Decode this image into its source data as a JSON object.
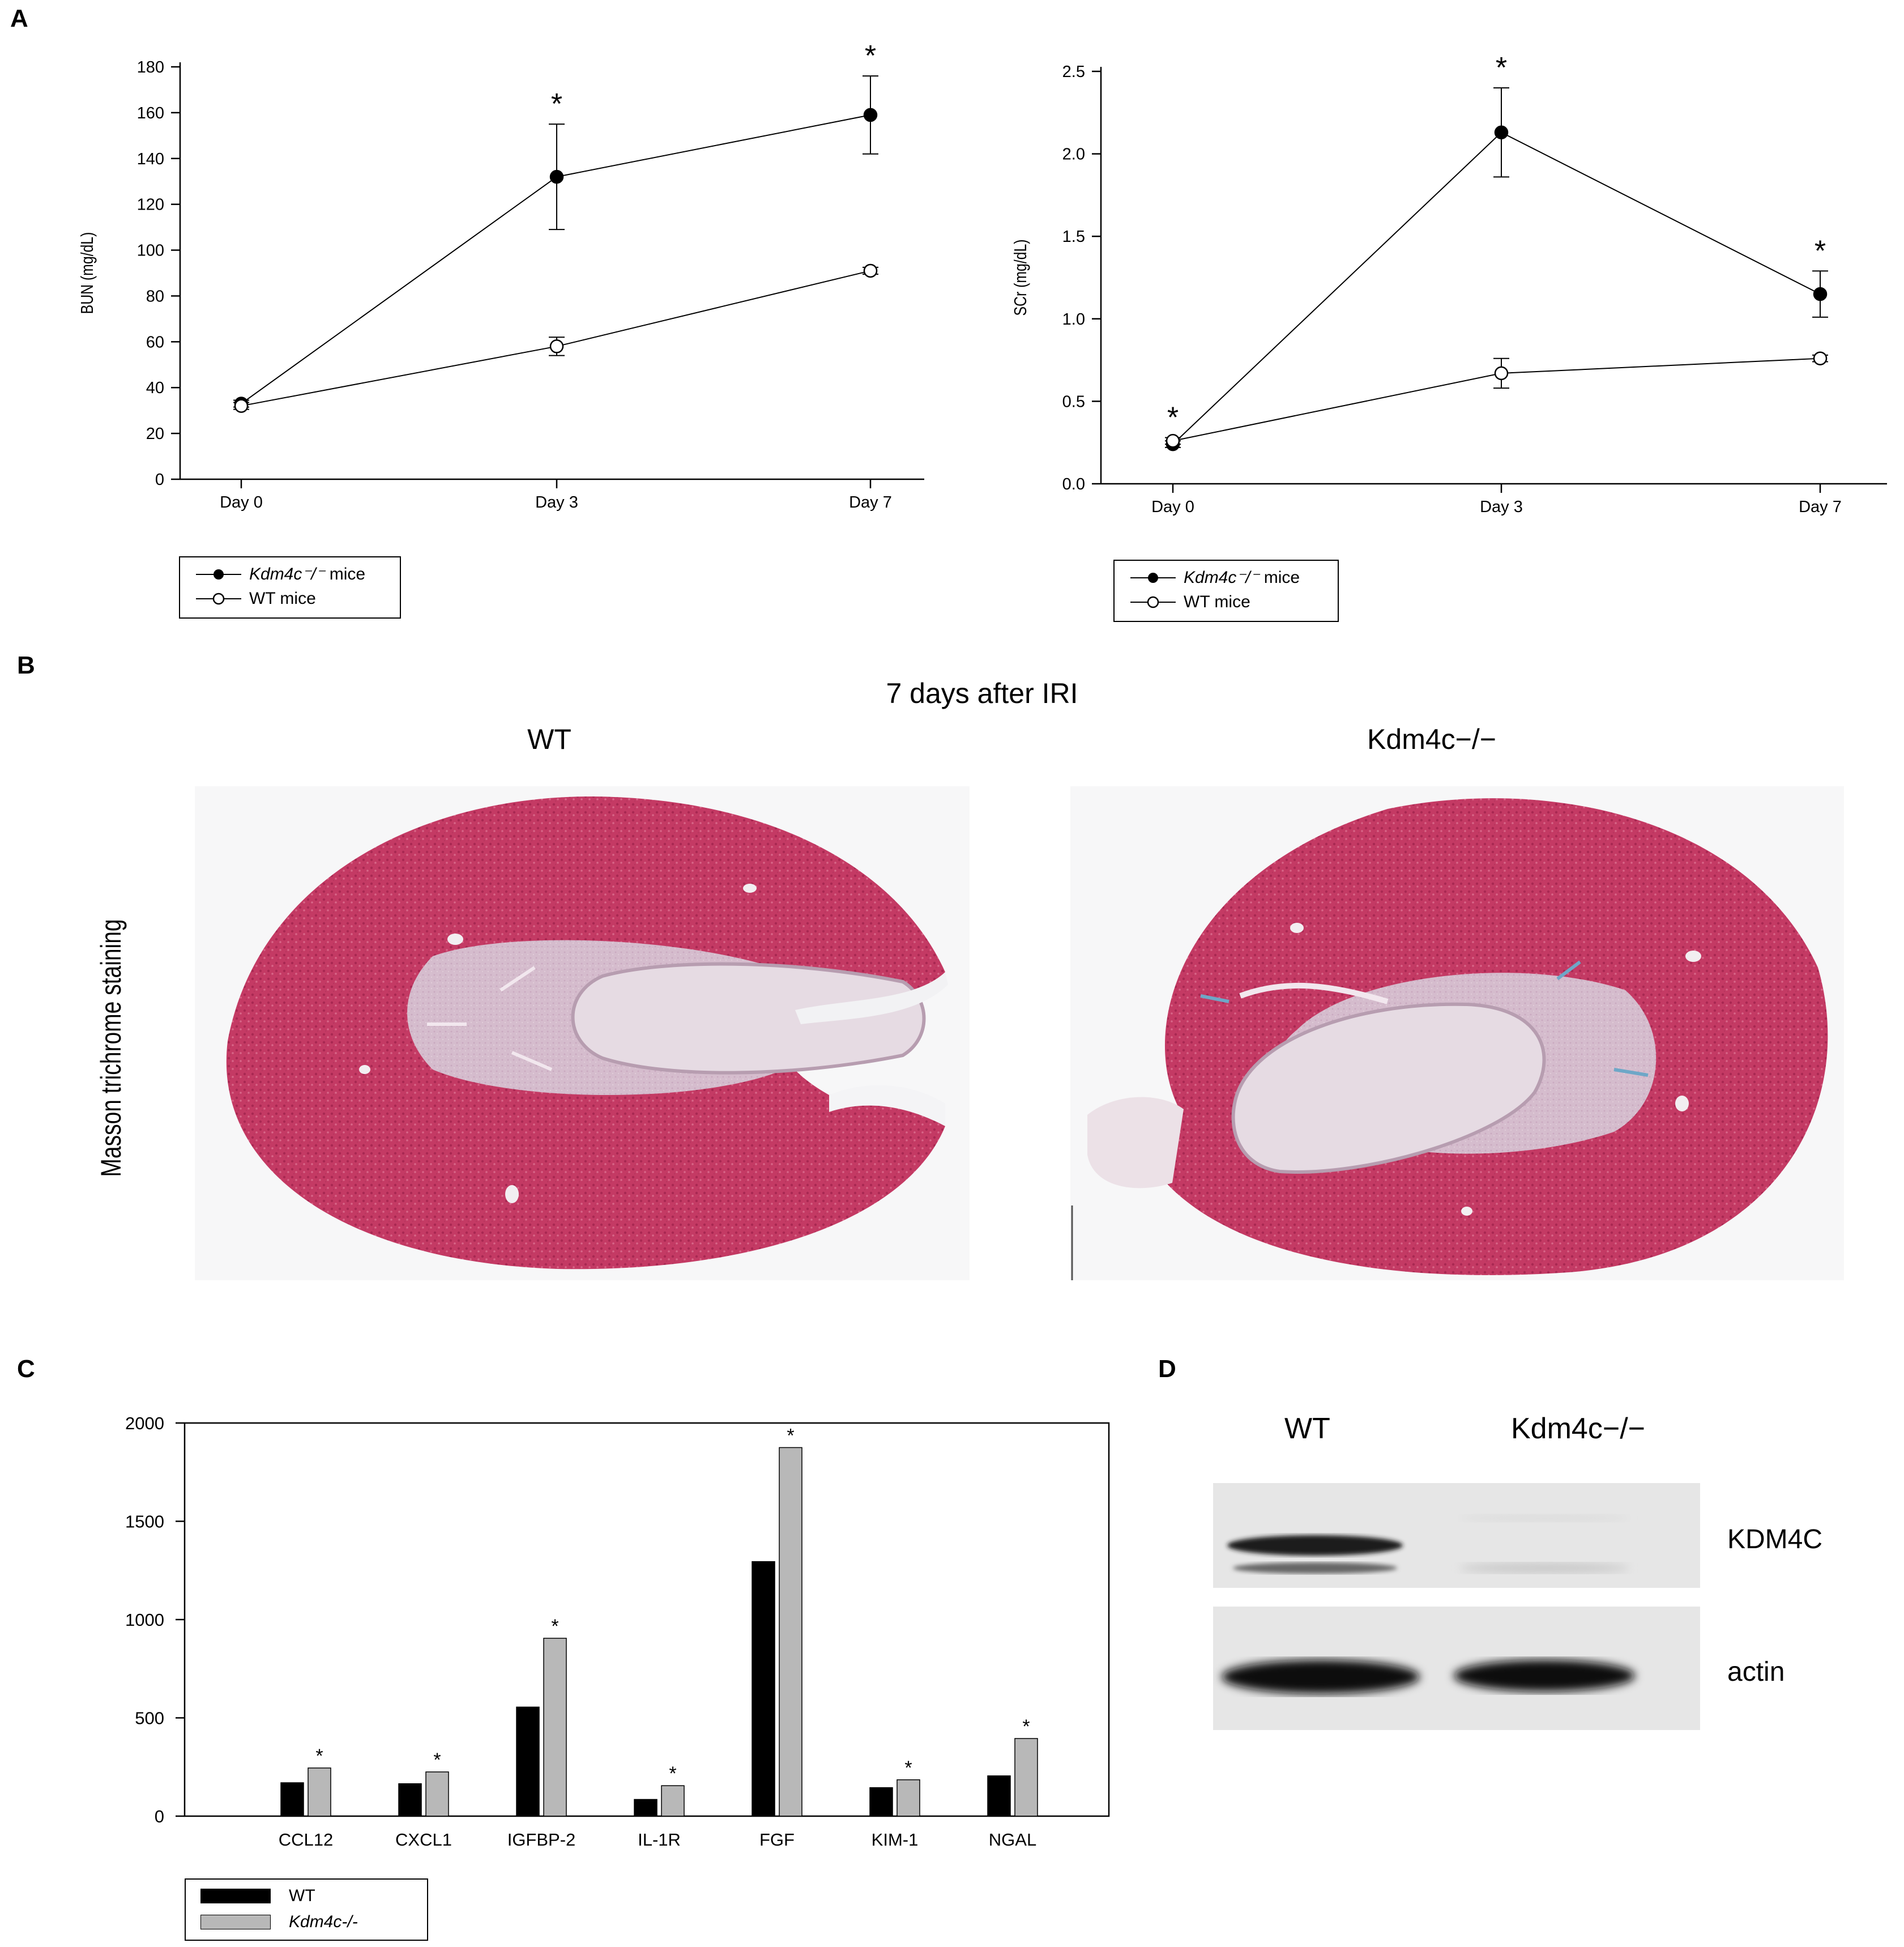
{
  "panels": {
    "a": "A",
    "b": "B",
    "c": "C",
    "d": "D"
  },
  "chart_data": [
    {
      "id": "bun",
      "type": "line",
      "ylabel": "BUN (mg/dL)",
      "categories": [
        "Day 0",
        "Day 3",
        "Day 7"
      ],
      "ylim": [
        0,
        180
      ],
      "yticks": [
        0,
        20,
        40,
        60,
        80,
        100,
        120,
        140,
        160,
        180
      ],
      "series": [
        {
          "name": "Kdm4c⁻/⁻ mice",
          "marker": "filled",
          "values": [
            33,
            132,
            159
          ],
          "errors": [
            1.5,
            23,
            17
          ]
        },
        {
          "name": "WT mice",
          "marker": "open",
          "values": [
            32,
            58,
            91
          ],
          "errors": [
            1.5,
            4,
            1.5
          ]
        }
      ],
      "significance": [
        "",
        "*",
        "*"
      ],
      "legend": {
        "name_italic": "Kdm4c⁻/⁻",
        "name_rest": " mice",
        "wt": "WT mice"
      }
    },
    {
      "id": "scr",
      "type": "line",
      "ylabel": "SCr (mg/dL)",
      "categories": [
        "Day 0",
        "Day 3",
        "Day 7"
      ],
      "ylim": [
        0,
        2.5
      ],
      "yticks": [
        "0.0",
        "0.5",
        "1.0",
        "1.5",
        "2.0",
        "2.5"
      ],
      "series": [
        {
          "name": "Kdm4c⁻/⁻ mice",
          "marker": "filled",
          "values": [
            0.24,
            2.13,
            1.15
          ],
          "errors": [
            0.02,
            0.27,
            0.14
          ]
        },
        {
          "name": "WT mice",
          "marker": "open",
          "values": [
            0.26,
            0.67,
            0.76
          ],
          "errors": [
            0.02,
            0.09,
            0.02
          ]
        }
      ],
      "significance": [
        "*",
        "*",
        "*"
      ],
      "legend": {
        "name_italic": "Kdm4c⁻/⁻",
        "name_rest": " mice",
        "wt": "WT mice"
      }
    },
    {
      "id": "cytokines",
      "type": "bar",
      "categories": [
        "CCL12",
        "CXCL1",
        "IGFBP-2",
        "IL-1R",
        "FGF",
        "KIM-1",
        "NGAL"
      ],
      "ylim": [
        0,
        2000
      ],
      "yticks": [
        0,
        500,
        1000,
        1500,
        2000
      ],
      "series": [
        {
          "name": "WT",
          "color": "#000000",
          "values": [
            170,
            165,
            555,
            85,
            1295,
            145,
            205
          ]
        },
        {
          "name": "Kdm4c-/-",
          "color": "#b8b8b8",
          "values": [
            245,
            225,
            905,
            155,
            1875,
            185,
            395
          ]
        }
      ],
      "significance": [
        "*",
        "*",
        "*",
        "*",
        "*",
        "*",
        "*"
      ]
    }
  ],
  "histology": {
    "title": "7 days after IRI",
    "left_label": "WT",
    "right_label": "Kdm4c−/−",
    "row_label": "Masson trichrome staining"
  },
  "blot": {
    "wt": "WT",
    "ko": "Kdm4c−/−",
    "band1": "KDM4C",
    "band2": "actin"
  },
  "colors": {
    "kidney_cortex": "#c43a64",
    "kidney_medulla": "#d7c5d3",
    "background": "#ffffff"
  }
}
